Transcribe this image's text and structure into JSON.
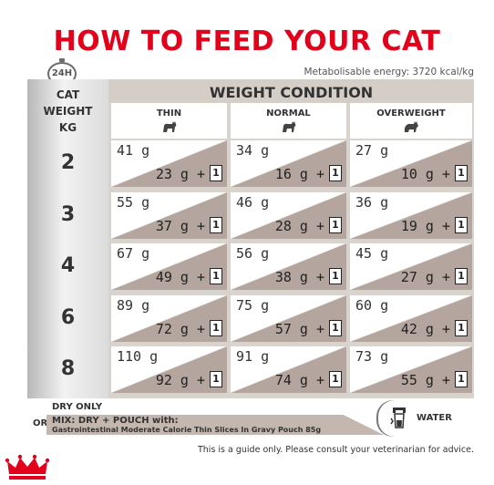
{
  "title": "HOW TO FEED YOUR CAT",
  "clock_label": "24H",
  "energy": "Metabolisable energy: 3720 kcal/kg",
  "header": {
    "cat_weight": [
      "CAT",
      "WEIGHT",
      "KG"
    ],
    "weight_condition": "WEIGHT CONDITION",
    "conditions": [
      "THIN",
      "NORMAL",
      "OVERWEIGHT"
    ]
  },
  "pouch_label": "1",
  "rows": [
    {
      "kg": "2",
      "cells": [
        {
          "dry": "41 g",
          "mix": "23 g +"
        },
        {
          "dry": "34 g",
          "mix": "16 g +"
        },
        {
          "dry": "27 g",
          "mix": "10 g +"
        }
      ]
    },
    {
      "kg": "3",
      "cells": [
        {
          "dry": "55 g",
          "mix": "37 g +"
        },
        {
          "dry": "46 g",
          "mix": "28 g +"
        },
        {
          "dry": "36 g",
          "mix": "19 g +"
        }
      ]
    },
    {
      "kg": "4",
      "cells": [
        {
          "dry": "67 g",
          "mix": "49 g +"
        },
        {
          "dry": "56 g",
          "mix": "38 g +"
        },
        {
          "dry": "45 g",
          "mix": "27 g +"
        }
      ]
    },
    {
      "kg": "6",
      "cells": [
        {
          "dry": "89 g",
          "mix": "72 g +"
        },
        {
          "dry": "75 g",
          "mix": "57 g +"
        },
        {
          "dry": "60 g",
          "mix": "42 g +"
        }
      ]
    },
    {
      "kg": "8",
      "cells": [
        {
          "dry": "110 g",
          "mix": "92 g +"
        },
        {
          "dry": "91 g",
          "mix": "74 g +"
        },
        {
          "dry": "73 g",
          "mix": "55 g +"
        }
      ]
    }
  ],
  "legend": {
    "dry_only": "DRY ONLY",
    "or": "OR",
    "mix_title": "MIX: DRY + POUCH with:",
    "mix_product": "Gastrointestinal Moderate Calorie Thin Slices In Gravy Pouch 85g",
    "water": "WATER"
  },
  "disclaimer": "This is a guide only. Please consult your veterinarian for advice.",
  "colors": {
    "brand_red": "#e2001a",
    "mix_band": "#b4a69e",
    "header_band": "#d4cec7"
  },
  "icons": [
    "clock-icon",
    "cat-icon",
    "pouch-icon",
    "water-icon",
    "royal-canin-crown-logo"
  ]
}
